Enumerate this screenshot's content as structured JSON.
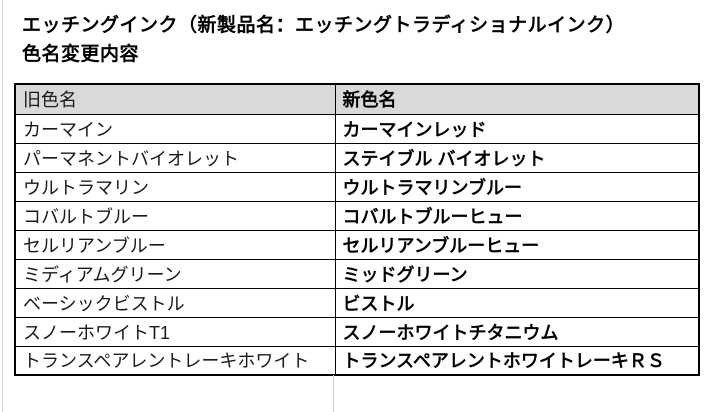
{
  "document": {
    "title_line1": "エッチングインク（新製品名：エッチングトラディショナルインク）",
    "title_line2": "色名変更内容"
  },
  "table": {
    "headers": {
      "old": "旧色名",
      "new": "新色名"
    },
    "rows": [
      {
        "old": "カーマイン",
        "new": "カーマインレッド"
      },
      {
        "old": "パーマネントバイオレット",
        "new": "ステイブル バイオレット"
      },
      {
        "old": "ウルトラマリン",
        "new": "ウルトラマリンブルー"
      },
      {
        "old": "コバルトブルー",
        "new": "コバルトブルーヒュー"
      },
      {
        "old": "セルリアンブルー",
        "new": "セルリアンブルーヒュー"
      },
      {
        "old": "ミディアムグリーン",
        "new": "ミッドグリーン"
      },
      {
        "old": "ベーシックビストル",
        "new": "ビストル"
      },
      {
        "old": "スノーホワイトT1",
        "new": "スノーホワイトチタニウム"
      },
      {
        "old": "トランスペアレントレーキホワイト",
        "new": "トランスペアレントホワイトレーキＲＳ"
      }
    ]
  },
  "colors": {
    "header_background": "#d9d9d9",
    "table_border": "#000000",
    "faint_line": "#cccccc"
  }
}
